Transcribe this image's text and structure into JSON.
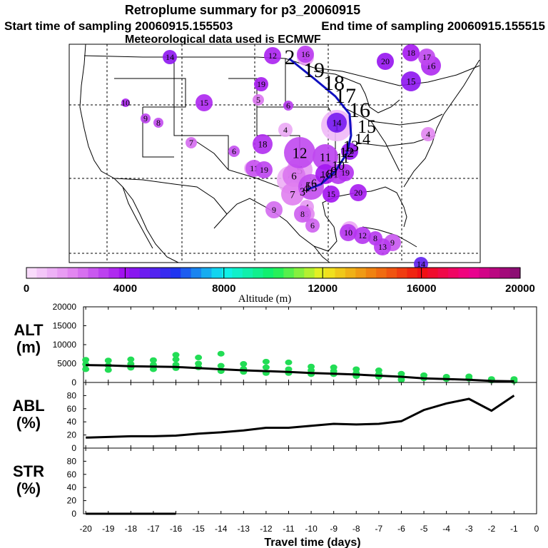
{
  "header": {
    "title": "Retroplume summary for p3_20060915",
    "start_label": "Start time of sampling 20060915.155503",
    "end_label": "End time of sampling 20060915.155515",
    "met_label": "Meteorological data used is ECMWF"
  },
  "colors": {
    "trajectory_line": "#1010c0",
    "alt_points": "#22dd55",
    "lines": "#000000"
  },
  "chart_data": [
    {
      "type": "scatter",
      "name": "retroplume-map",
      "title": "Retroplume summary for p3_20060915",
      "map_region": "contiguous United States, Mexico, Gulf of Mexico",
      "markers": [
        {
          "day": 1,
          "label": "1",
          "alt": 900
        },
        {
          "day": 2,
          "label": "2",
          "alt": 1100
        },
        {
          "day": 3,
          "label": "3",
          "alt": 700
        },
        {
          "day": 4,
          "label": "4",
          "alt": 1200
        },
        {
          "day": 5,
          "label": "5",
          "alt": 1500
        },
        {
          "day": 6,
          "label": "6",
          "alt": 2200
        },
        {
          "day": 7,
          "label": "7",
          "alt": 2000
        },
        {
          "day": 8,
          "label": "8",
          "alt": 2600
        },
        {
          "day": 9,
          "label": "9",
          "alt": 2400
        },
        {
          "day": 10,
          "label": "10",
          "alt": 3300
        },
        {
          "day": 11,
          "label": "11",
          "alt": 2800
        },
        {
          "day": 12,
          "label": "12",
          "alt": 3000
        },
        {
          "day": 13,
          "label": "13",
          "alt": 2900
        },
        {
          "day": 14,
          "label": "14",
          "alt": 4300
        },
        {
          "day": 15,
          "label": "15",
          "alt": 3600
        },
        {
          "day": 16,
          "label": "16",
          "alt": 3200
        },
        {
          "day": 17,
          "label": "17",
          "alt": 3000
        },
        {
          "day": 18,
          "label": "18",
          "alt": 3500
        },
        {
          "day": 19,
          "label": "19",
          "alt": 3100
        },
        {
          "day": 20,
          "label": "20",
          "alt": 3800
        }
      ],
      "trajectory_labels": [
        "2",
        "19",
        "18",
        "17",
        "16",
        "15",
        "14",
        "13",
        "12",
        "11",
        "10",
        "9",
        "8",
        "7",
        "6",
        "5",
        "4",
        "3"
      ]
    },
    {
      "type": "colorbar",
      "name": "altitude-colorbar",
      "xlabel": "Altitude (m)",
      "range": [
        0,
        20000
      ],
      "ticks": [
        "0",
        "4000",
        "8000",
        "12000",
        "16000",
        "20000"
      ],
      "color_stops": [
        "#fce6fc",
        "#e080f0",
        "#a010f0",
        "#2030f0",
        "#10f0f0",
        "#10f060",
        "#f0f020",
        "#f08010",
        "#f01010",
        "#f00090",
        "#801070"
      ]
    },
    {
      "type": "scatter",
      "name": "alt-panel",
      "ylabel": "ALT\n(m)",
      "ylabel_lines": [
        "ALT",
        "(m)"
      ],
      "ylim": [
        0,
        20000
      ],
      "yticks": [
        "20000",
        "15000",
        "10000",
        "5000",
        "0"
      ],
      "line_x": [
        -20,
        -19,
        -18,
        -17,
        -16,
        -15,
        -14,
        -13,
        -12,
        -11,
        -10,
        -9,
        -8,
        -7,
        -6,
        -5,
        -4,
        -3,
        -2,
        -1
      ],
      "line_y": [
        4600,
        4500,
        4300,
        4200,
        4100,
        3800,
        3500,
        3200,
        3000,
        2800,
        2500,
        2300,
        2100,
        1800,
        1500,
        1100,
        900,
        700,
        400,
        300
      ],
      "points": [
        [
          -20,
          6000
        ],
        [
          -20,
          4800
        ],
        [
          -20,
          3500
        ],
        [
          -19,
          5800
        ],
        [
          -19,
          4500
        ],
        [
          -19,
          3300
        ],
        [
          -18,
          6100
        ],
        [
          -18,
          4900
        ],
        [
          -18,
          3900
        ],
        [
          -17,
          5900
        ],
        [
          -17,
          4700
        ],
        [
          -17,
          3500
        ],
        [
          -16,
          7300
        ],
        [
          -16,
          6100
        ],
        [
          -16,
          4700
        ],
        [
          -16,
          3800
        ],
        [
          -15,
          6600
        ],
        [
          -15,
          5000
        ],
        [
          -15,
          4000
        ],
        [
          -14,
          7600
        ],
        [
          -14,
          4400
        ],
        [
          -14,
          3000
        ],
        [
          -13,
          4900
        ],
        [
          -13,
          3600
        ],
        [
          -13,
          2800
        ],
        [
          -12,
          5500
        ],
        [
          -12,
          4000
        ],
        [
          -12,
          2500
        ],
        [
          -11,
          5300
        ],
        [
          -11,
          3500
        ],
        [
          -11,
          2500
        ],
        [
          -10,
          4200
        ],
        [
          -10,
          3200
        ],
        [
          -10,
          2200
        ],
        [
          -9,
          4000
        ],
        [
          -9,
          3000
        ],
        [
          -9,
          2200
        ],
        [
          -8,
          3500
        ],
        [
          -8,
          2500
        ],
        [
          -8,
          1700
        ],
        [
          -7,
          3200
        ],
        [
          -7,
          2200
        ],
        [
          -7,
          1500
        ],
        [
          -6,
          2300
        ],
        [
          -6,
          1400
        ],
        [
          -6,
          700
        ],
        [
          -5,
          1900
        ],
        [
          -5,
          1100
        ],
        [
          -4,
          1500
        ],
        [
          -4,
          900
        ],
        [
          -3,
          1600
        ],
        [
          -3,
          1000
        ],
        [
          -2,
          900
        ],
        [
          -2,
          500
        ],
        [
          -1,
          900
        ],
        [
          -1,
          400
        ]
      ]
    },
    {
      "type": "line",
      "name": "abl-panel",
      "ylabel_lines": [
        "ABL",
        "(%)"
      ],
      "ylim": [
        0,
        100
      ],
      "yticks": [
        "80",
        "60",
        "40",
        "20",
        "0"
      ],
      "x": [
        -20,
        -19,
        -18,
        -17,
        -16,
        -15,
        -14,
        -13,
        -12,
        -11,
        -10,
        -9,
        -8,
        -7,
        -6,
        -5,
        -4,
        -3,
        -2,
        -1
      ],
      "y": [
        16,
        17,
        18,
        18,
        19,
        22,
        24,
        27,
        31,
        31,
        34,
        37,
        36,
        37,
        41,
        58,
        68,
        75,
        57,
        80
      ]
    },
    {
      "type": "line",
      "name": "str-panel",
      "ylabel_lines": [
        "STR",
        "(%)"
      ],
      "ylim": [
        0,
        100
      ],
      "yticks": [
        "80",
        "60",
        "40",
        "20",
        "0"
      ],
      "x": [
        -20,
        -19,
        -18,
        -17,
        -16
      ],
      "y": [
        0,
        0,
        0,
        0,
        0
      ]
    }
  ],
  "xaxis": {
    "label": "Travel time (days)",
    "ticks": [
      "-20",
      "-19",
      "-18",
      "-17",
      "-16",
      "-15",
      "-14",
      "-13",
      "-12",
      "-11",
      "-10",
      "-9",
      "-8",
      "-7",
      "-6",
      "-5",
      "-4",
      "-3",
      "-2",
      "-1",
      "0"
    ]
  }
}
